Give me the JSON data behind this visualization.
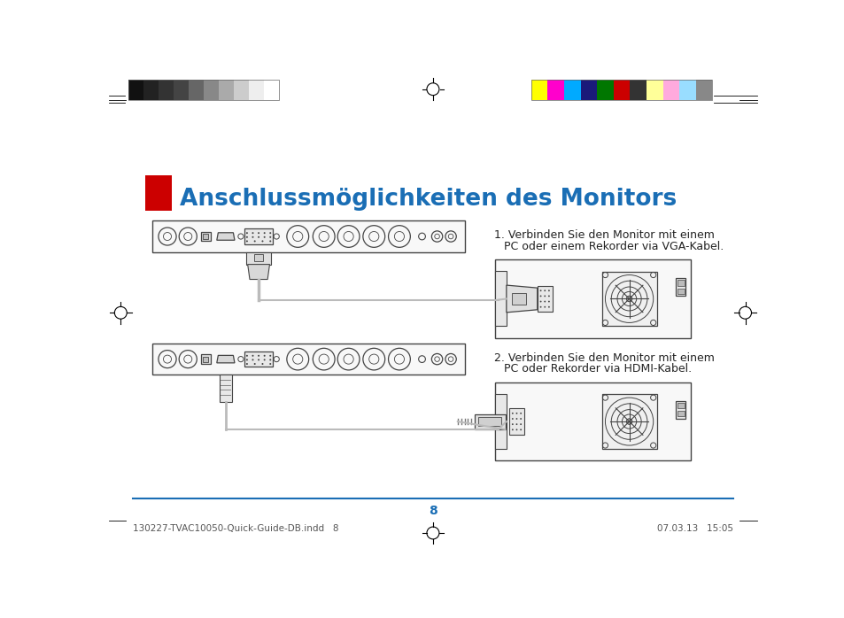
{
  "title": "Anschlussmöglichkeiten des Monitors",
  "title_color": "#1a6eb5",
  "title_fontsize": 19,
  "text1_line1": "1. Verbinden Sie den Monitor mit einem",
  "text1_line2": "PC oder einem Rekorder via VGA-Kabel.",
  "text2_line1": "2. Verbinden Sie den Monitor mit einem",
  "text2_line2": "PC oder Rekorder via HDMI-Kabel.",
  "grayscale_colors": [
    "#111111",
    "#222222",
    "#333333",
    "#444444",
    "#666666",
    "#888888",
    "#aaaaaa",
    "#cccccc",
    "#eeeeee",
    "#ffffff"
  ],
  "color_bars": [
    "#ffff00",
    "#ff00cc",
    "#00aaff",
    "#1a1a7a",
    "#007700",
    "#cc0000",
    "#333333",
    "#ffff99",
    "#ffaadd",
    "#99ddff",
    "#888888"
  ],
  "page_number": "8",
  "footer_left": "130227-TVAC10050-Quick-Guide-DB.indd   8",
  "footer_right": "07.03.13   15:05",
  "background_color": "#ffffff",
  "line_color": "#444444",
  "cable_color": "#bbbbbb"
}
